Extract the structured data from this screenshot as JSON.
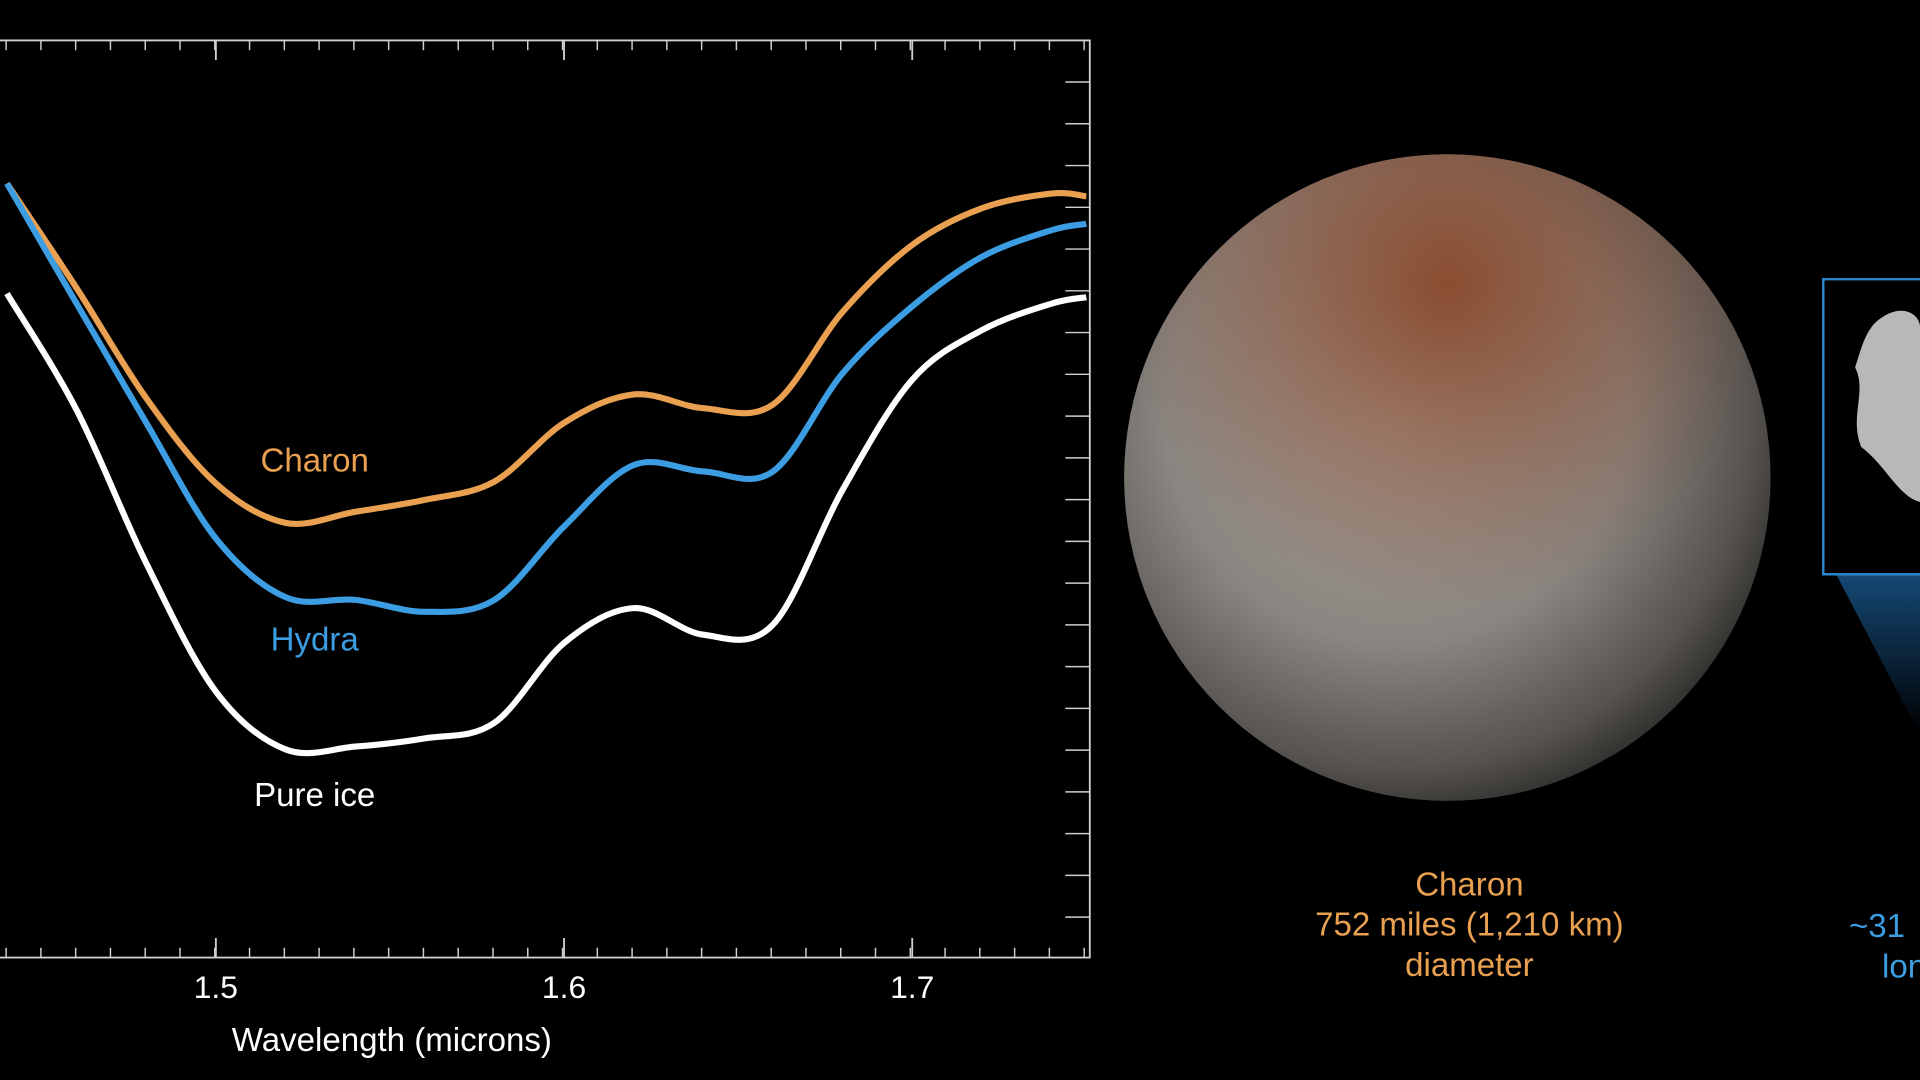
{
  "chart_data": {
    "type": "line",
    "xlabel": "Wavelength (microns)",
    "x": [
      1.44,
      1.46,
      1.48,
      1.5,
      1.52,
      1.54,
      1.56,
      1.58,
      1.6,
      1.62,
      1.64,
      1.66,
      1.68,
      1.7,
      1.72,
      1.74,
      1.75
    ],
    "series": [
      {
        "name": "Charon",
        "color": "#e9a050",
        "values": [
          0.844,
          0.73,
          0.61,
          0.517,
          0.474,
          0.486,
          0.499,
          0.519,
          0.583,
          0.614,
          0.599,
          0.603,
          0.704,
          0.777,
          0.817,
          0.833,
          0.83
        ]
      },
      {
        "name": "Hydra",
        "color": "#3c9de2",
        "values": [
          0.844,
          0.713,
          0.583,
          0.457,
          0.393,
          0.39,
          0.377,
          0.39,
          0.47,
          0.537,
          0.53,
          0.53,
          0.637,
          0.71,
          0.764,
          0.793,
          0.8
        ]
      },
      {
        "name": "Pure ice",
        "color": "#ffffff",
        "values": [
          0.724,
          0.597,
          0.43,
          0.29,
          0.227,
          0.23,
          0.239,
          0.256,
          0.343,
          0.381,
          0.352,
          0.363,
          0.51,
          0.63,
          0.684,
          0.713,
          0.72
        ]
      }
    ],
    "xlim": [
      1.438,
      1.751
    ],
    "xticks": [
      1.5,
      1.6,
      1.7
    ],
    "ylim": [
      0,
      1
    ]
  },
  "images": [
    {
      "caption": [
        "Charon",
        "752 miles (1,210 km)",
        "diameter"
      ],
      "color": "#e9a050"
    },
    {
      "caption": [
        "~31",
        "lon"
      ],
      "color": "#3c9de2"
    }
  ]
}
